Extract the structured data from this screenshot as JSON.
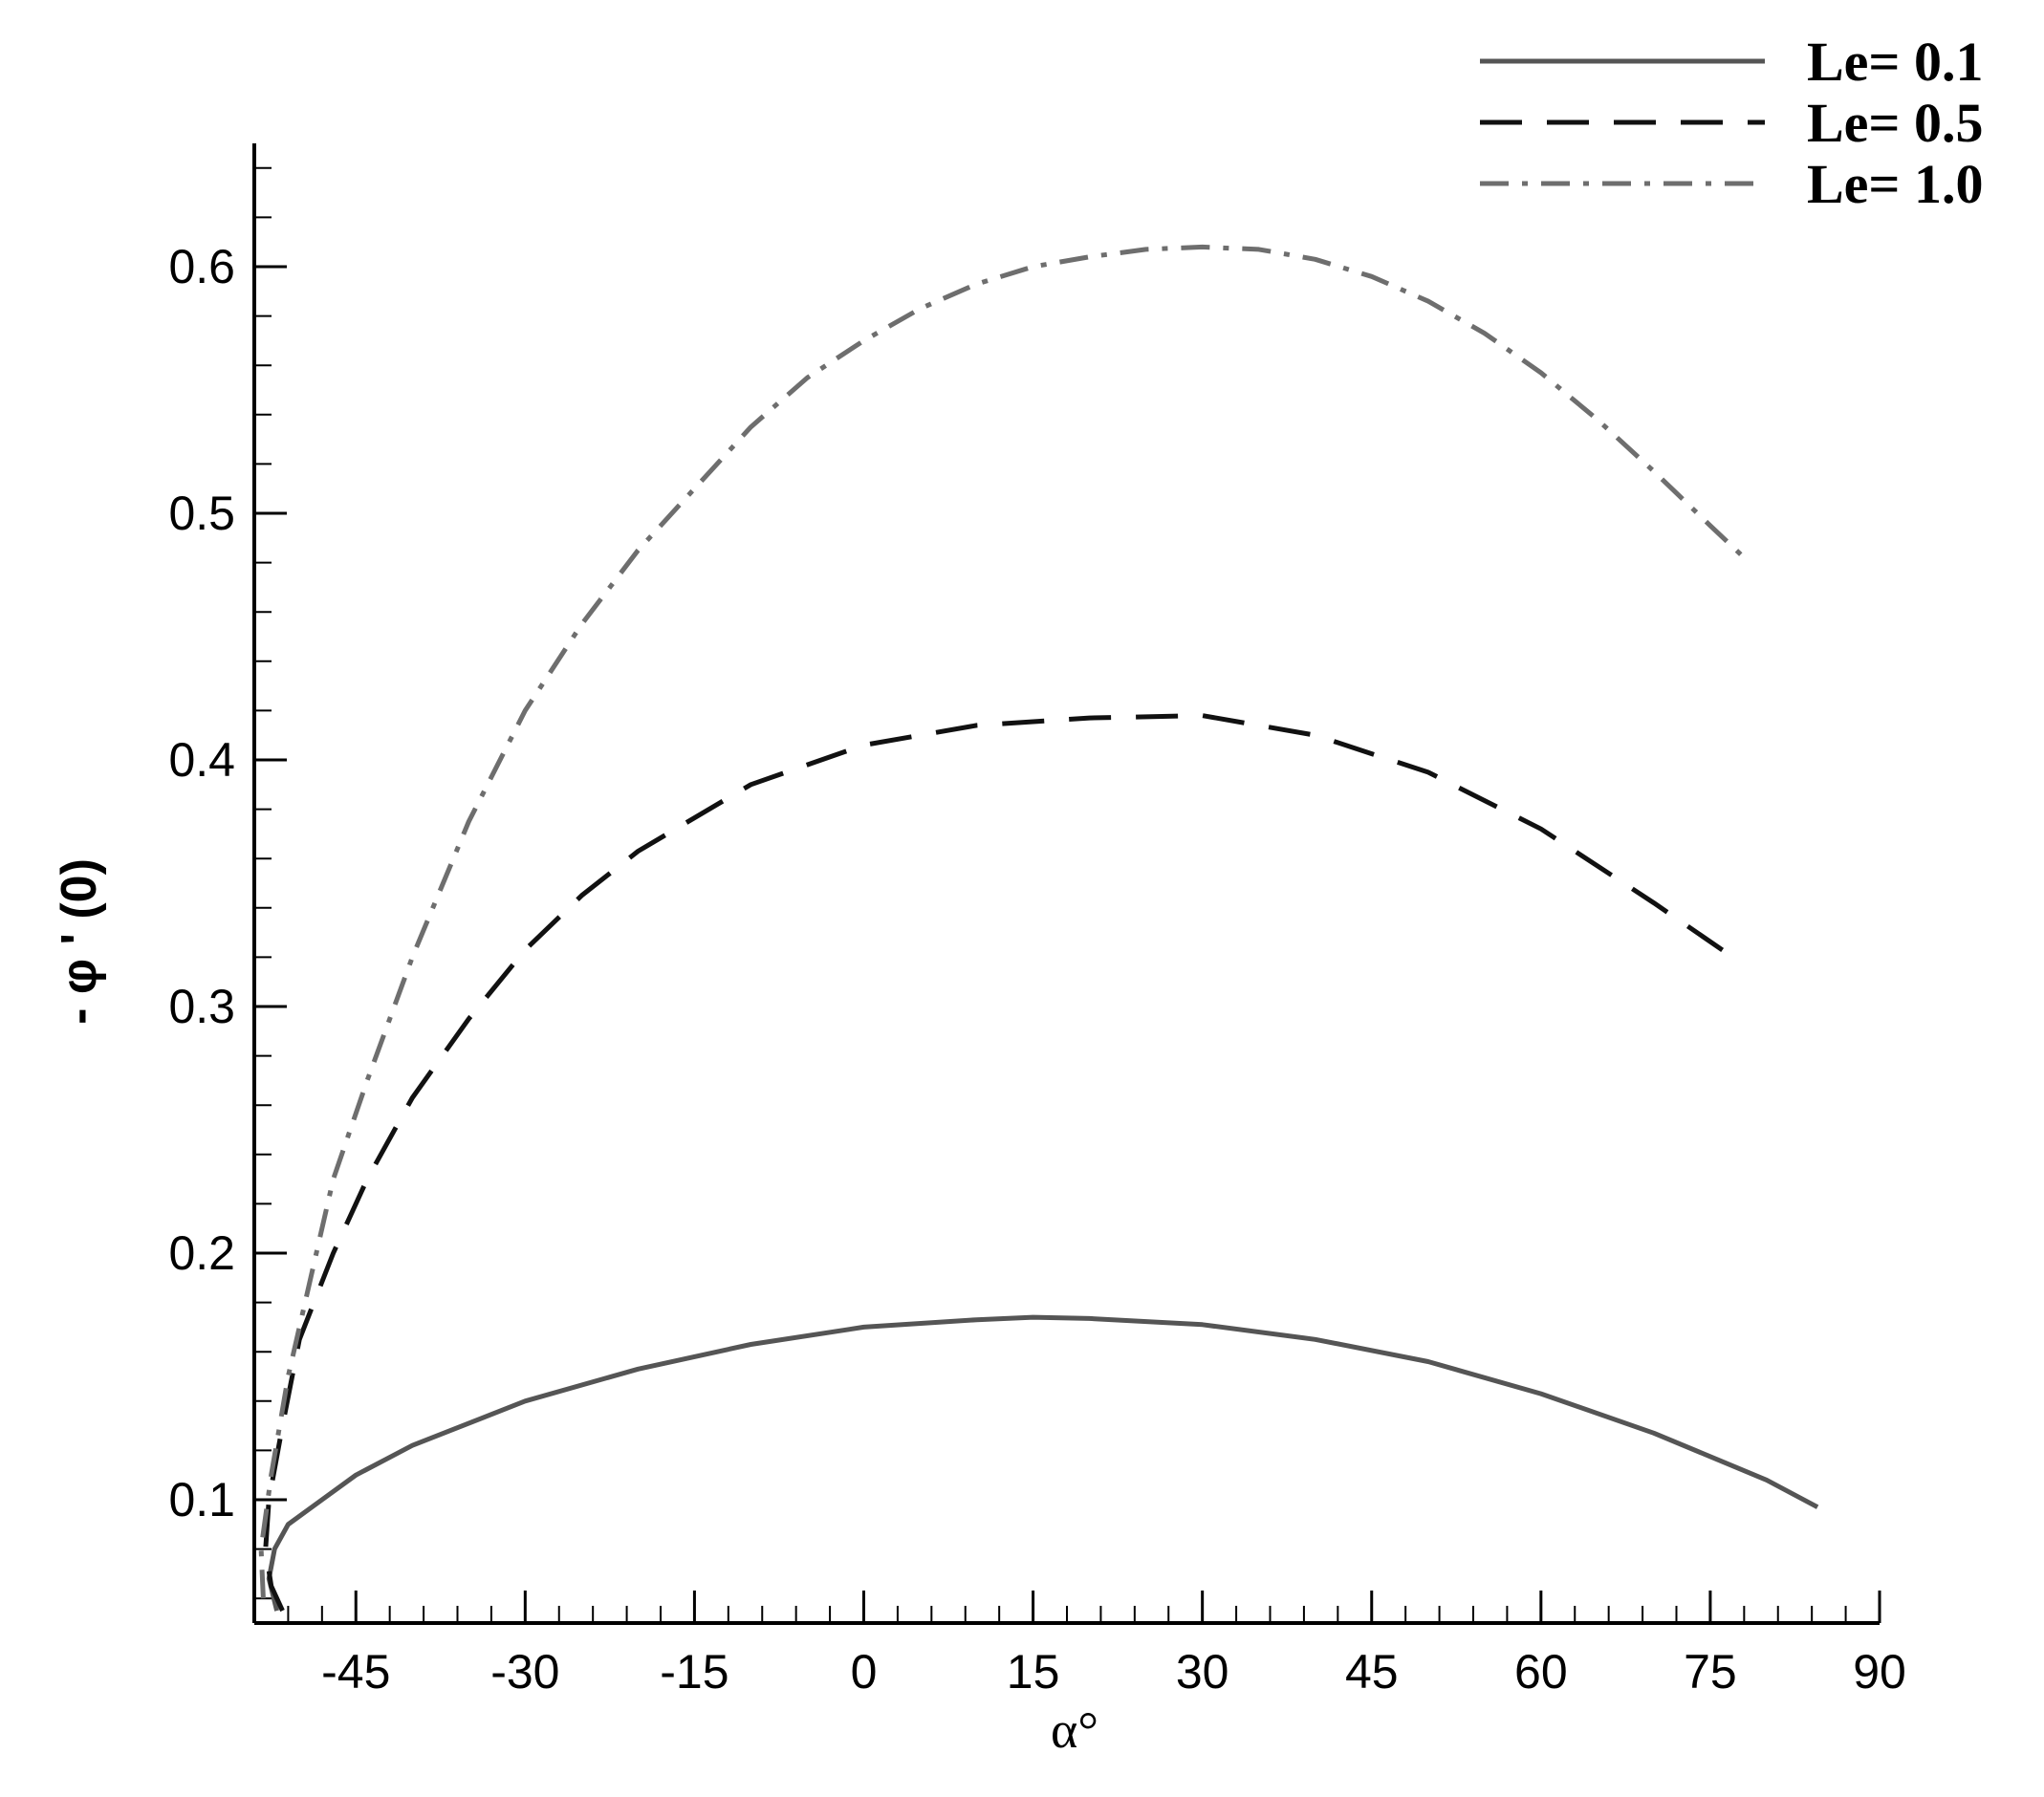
{
  "chart_data": {
    "type": "line",
    "xlabel": "α°",
    "ylabel": "- φ ' (0)",
    "xlim": [
      -54,
      90
    ],
    "ylim": [
      0.05,
      0.65
    ],
    "x_ticks": [
      -45,
      -30,
      -15,
      0,
      15,
      30,
      45,
      60,
      75,
      90
    ],
    "x_tick_labels": [
      "-45",
      "-30",
      "-15",
      "0",
      "15",
      "30",
      "45",
      "60",
      "75",
      "90"
    ],
    "y_ticks": [
      0.1,
      0.2,
      0.3,
      0.4,
      0.5,
      0.6
    ],
    "y_tick_labels": [
      "0.1",
      "0.2",
      "0.3",
      "0.4",
      "0.5",
      "0.6"
    ],
    "grid": false,
    "legend_position": "top-right",
    "series": [
      {
        "name": "Le= 0.1",
        "style": "solid",
        "color": "#555555",
        "points": [
          [
            -52.0,
            0.055
          ],
          [
            -52.7,
            0.068
          ],
          [
            -52.2,
            0.08
          ],
          [
            -51.0,
            0.09
          ],
          [
            -48,
            0.1
          ],
          [
            -45,
            0.11
          ],
          [
            -40,
            0.122
          ],
          [
            -30,
            0.14
          ],
          [
            -20,
            0.153
          ],
          [
            -10,
            0.163
          ],
          [
            0,
            0.17
          ],
          [
            10,
            0.173
          ],
          [
            15,
            0.174
          ],
          [
            20,
            0.1735
          ],
          [
            30,
            0.171
          ],
          [
            40,
            0.165
          ],
          [
            50,
            0.156
          ],
          [
            60,
            0.143
          ],
          [
            70,
            0.127
          ],
          [
            80,
            0.108
          ],
          [
            84.5,
            0.097
          ]
        ]
      },
      {
        "name": "Le= 0.5",
        "style": "dashed",
        "color": "#111111",
        "points": [
          [
            -51.5,
            0.055
          ],
          [
            -52.5,
            0.065
          ],
          [
            -53.0,
            0.08
          ],
          [
            -52.7,
            0.1
          ],
          [
            -51.5,
            0.13
          ],
          [
            -50,
            0.165
          ],
          [
            -47,
            0.2
          ],
          [
            -44,
            0.23
          ],
          [
            -40,
            0.263
          ],
          [
            -35,
            0.295
          ],
          [
            -30,
            0.323
          ],
          [
            -25,
            0.345
          ],
          [
            -20,
            0.363
          ],
          [
            -10,
            0.39
          ],
          [
            0,
            0.406
          ],
          [
            10,
            0.414
          ],
          [
            20,
            0.417
          ],
          [
            30,
            0.418
          ],
          [
            40,
            0.41
          ],
          [
            50,
            0.395
          ],
          [
            60,
            0.372
          ],
          [
            70,
            0.342
          ],
          [
            77,
            0.32
          ]
        ]
      },
      {
        "name": "Le= 1.0",
        "style": "dashdot",
        "color": "#6e6e6e",
        "points": [
          [
            -53.2,
            0.06
          ],
          [
            -53.4,
            0.08
          ],
          [
            -52.5,
            0.11
          ],
          [
            -51,
            0.15
          ],
          [
            -49,
            0.19
          ],
          [
            -47,
            0.23
          ],
          [
            -44,
            0.27
          ],
          [
            -40,
            0.32
          ],
          [
            -35,
            0.375
          ],
          [
            -30,
            0.42
          ],
          [
            -25,
            0.455
          ],
          [
            -20,
            0.485
          ],
          [
            -15,
            0.51
          ],
          [
            -10,
            0.535
          ],
          [
            -5,
            0.555
          ],
          [
            0,
            0.57
          ],
          [
            5,
            0.583
          ],
          [
            10,
            0.593
          ],
          [
            15,
            0.6
          ],
          [
            20,
            0.604
          ],
          [
            25,
            0.607
          ],
          [
            30,
            0.608
          ],
          [
            35,
            0.607
          ],
          [
            40,
            0.603
          ],
          [
            45,
            0.596
          ],
          [
            50,
            0.586
          ],
          [
            55,
            0.573
          ],
          [
            60,
            0.557
          ],
          [
            65,
            0.538
          ],
          [
            70,
            0.517
          ],
          [
            75,
            0.495
          ],
          [
            78,
            0.482
          ]
        ]
      }
    ]
  }
}
